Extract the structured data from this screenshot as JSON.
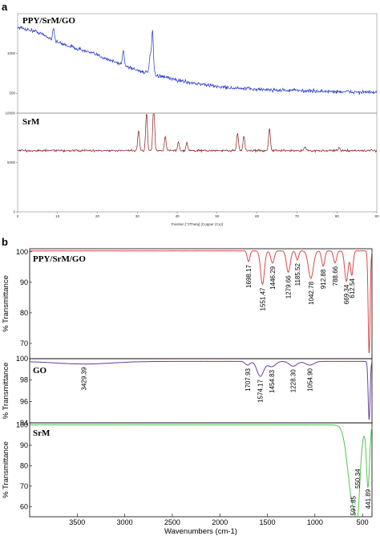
{
  "chart_data": [
    {
      "panel": "a",
      "type": "line",
      "xlabel": "Position [°2Theta] (Copper (Cu))",
      "xlim": [
        0,
        90
      ],
      "x_ticks": [
        0,
        10,
        20,
        30,
        40,
        50,
        60,
        70,
        80,
        90
      ],
      "color_top": "#1f35c8",
      "color_bottom": "#8b1a1a",
      "subplots": [
        {
          "label": "PPY/SrM/GO",
          "ylim": [
            250,
            1500
          ],
          "y_ticks": [
            500,
            1000
          ],
          "baseline": [
            [
              0,
              1330
            ],
            [
              5,
              1270
            ],
            [
              10,
              1140
            ],
            [
              15,
              1060
            ],
            [
              20,
              980
            ],
            [
              25,
              880
            ],
            [
              30,
              790
            ],
            [
              35,
              720
            ],
            [
              40,
              665
            ],
            [
              45,
              620
            ],
            [
              50,
              585
            ],
            [
              55,
              560
            ],
            [
              60,
              550
            ],
            [
              65,
              540
            ],
            [
              70,
              535
            ],
            [
              75,
              525
            ],
            [
              80,
              520
            ],
            [
              85,
              515
            ],
            [
              90,
              510
            ]
          ],
          "peaks": [
            [
              26.5,
              190
            ],
            [
              33.8,
              540
            ],
            [
              33.2,
              230
            ],
            [
              9.0,
              160
            ]
          ],
          "noise": 40
        },
        {
          "label": "SrM",
          "ylim": [
            0,
            10000
          ],
          "y_ticks": [
            0,
            5000,
            10000
          ],
          "baseline": [
            [
              0,
              6200
            ],
            [
              90,
              6200
            ]
          ],
          "peaks": [
            [
              30.3,
              2000
            ],
            [
              32.3,
              3900
            ],
            [
              34.1,
              4800
            ],
            [
              37.0,
              1500
            ],
            [
              40.3,
              900
            ],
            [
              42.4,
              800
            ],
            [
              55.1,
              1800
            ],
            [
              56.7,
              1500
            ],
            [
              63.1,
              2300
            ],
            [
              72.0,
              400
            ],
            [
              80.5,
              300
            ]
          ],
          "noise": 180
        }
      ]
    },
    {
      "panel": "b",
      "type": "line",
      "xlabel": "Wavenumbers (cm-1)",
      "ylabel": "% Transmittance",
      "xlim": [
        4000,
        400
      ],
      "x_ticks": [
        3500,
        3000,
        2500,
        2000,
        1500,
        1000,
        500
      ],
      "subplots": [
        {
          "label": "PPY/SrM/GO",
          "color": "#d84a4a",
          "ylim": [
            65,
            101
          ],
          "y_ticks": [
            70,
            80,
            90,
            100
          ],
          "baseline": 100.3,
          "dips": [
            [
              1698.17,
              3.5,
              14
            ],
            [
              1551.47,
              11,
              20
            ],
            [
              1446.29,
              4,
              18
            ],
            [
              1279.66,
              7,
              20
            ],
            [
              1185.52,
              3,
              14
            ],
            [
              1042.78,
              9,
              26
            ],
            [
              912.88,
              5,
              16
            ],
            [
              788.66,
              4,
              16
            ],
            [
              669.34,
              10,
              18
            ],
            [
              612.54,
              8,
              14
            ],
            [
              430,
              34,
              10
            ]
          ],
          "peaks": [
            "1698.17",
            "1551.47",
            "1446.29",
            "1279.66",
            "1185.52",
            "1042.78",
            "912.88",
            "788.66",
            "669.34",
            "612.54"
          ]
        },
        {
          "label": "GO",
          "color": "#6b3fa0",
          "ylim": [
            94,
            100
          ],
          "y_ticks": [
            94,
            96,
            98,
            100
          ],
          "baseline": 99.75,
          "dips": [
            [
              3429.39,
              0.25,
              300
            ],
            [
              1707.93,
              0.35,
              25
            ],
            [
              1574.17,
              1.4,
              35
            ],
            [
              1454.83,
              0.5,
              40
            ],
            [
              1228.3,
              0.45,
              40
            ],
            [
              1054.9,
              0.35,
              45
            ],
            [
              430,
              5.5,
              10
            ]
          ],
          "peaks": [
            "3429.39",
            "1707.93",
            "1574.17",
            "1454.83",
            "1228.30",
            "1054.90"
          ]
        },
        {
          "label": "SrM",
          "color": "#55c455",
          "ylim": [
            55,
            101
          ],
          "y_ticks": [
            60,
            70,
            80,
            90,
            100
          ],
          "baseline": 100.0,
          "dips": [
            [
              597.85,
              38,
              55
            ],
            [
              550.34,
              20,
              22
            ],
            [
              441.89,
              30,
              16
            ]
          ],
          "peaks": [
            "597.85",
            "550.34",
            "441.89"
          ]
        }
      ]
    }
  ],
  "labels": {
    "panel_a": "a",
    "panel_b": "b"
  }
}
